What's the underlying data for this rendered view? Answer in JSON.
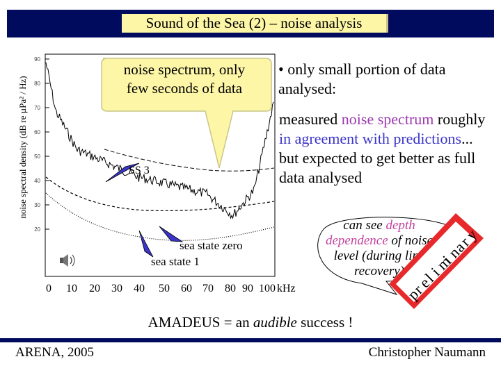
{
  "title": "Sound of the Sea (2) – noise analysis",
  "plot": {
    "ylabel": "noise spectral density (dB re µPa² / Hz)",
    "y_ticks": [
      "90",
      "80",
      "70",
      "60",
      "50",
      "40",
      "30",
      "20"
    ],
    "x_ticks": [
      "0",
      "10",
      "20",
      "30",
      "40",
      "50",
      "60",
      "70",
      "80",
      "90",
      "100"
    ],
    "x_unit": "kHz",
    "labels": {
      "ss3": "SS 3",
      "sea_state_zero": "sea state zero",
      "sea_state_1": "sea state 1"
    }
  },
  "callout": {
    "line1": "noise spectrum, only",
    "line2": "few seconds of data"
  },
  "bullet": "• only small portion of data analysed:",
  "measured": {
    "part1": "measured ",
    "noise_spectrum": "noise spectrum",
    "part2": " roughly ",
    "in_agreement": "in agreement with predictions",
    "part3": "... but expected to get better as full data analysed"
  },
  "bubble": {
    "part1": "can see ",
    "depth": "depth dependence",
    "part2": " of noise level (during line recovery)"
  },
  "stamp_letters": [
    "p",
    "r",
    "e",
    "l",
    "i",
    "m",
    "i",
    "n",
    "a",
    "r",
    "y"
  ],
  "amadeus": {
    "part1": "AMADEUS = an ",
    "audible": "audible",
    "part2": " success !"
  },
  "footer": {
    "left": "ARENA, 2005",
    "right": "Christopher Naumann"
  },
  "colors": {
    "title_bar": "#000b5e",
    "title_box": "#fdf6a6",
    "callout_fill": "#fdf6a6",
    "accent_purple": "#9c3ab0",
    "accent_blue": "#3a35c8",
    "stamp_red": "#e8292b",
    "speaker_icon": "speaker-icon"
  }
}
